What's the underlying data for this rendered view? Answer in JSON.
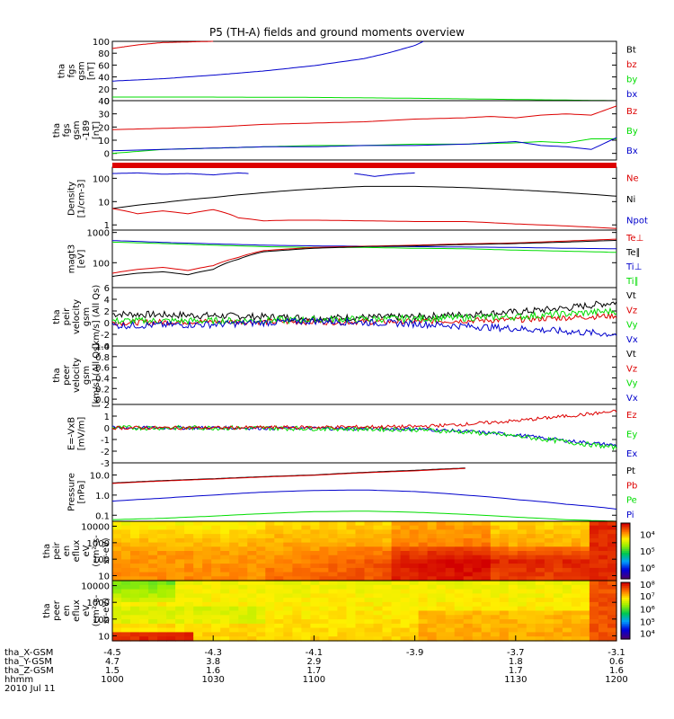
{
  "title": "P5 (TH-A) fields and ground moments overview",
  "colors": {
    "black": "#000000",
    "red": "#dd0000",
    "green": "#00dd00",
    "blue": "#0000cc"
  },
  "chart_data": [
    {
      "type": "line",
      "id": "bt",
      "ylabel": [
        "tha",
        "fgs",
        "gsm",
        "[nT]"
      ],
      "yscale": "linear",
      "ylim": [
        0,
        100
      ],
      "yticks": [
        0,
        20,
        40,
        60,
        80,
        100
      ],
      "ytick_labels": [
        "0",
        "20",
        "40",
        "60",
        "80",
        "100"
      ],
      "legend": [
        {
          "name": "Bt",
          "color": "black"
        },
        {
          "name": "bz",
          "color": "red"
        },
        {
          "name": "by",
          "color": "green"
        },
        {
          "name": "bx",
          "color": "blue"
        }
      ],
      "series": [
        {
          "name": "bz",
          "color": "red",
          "x": [
            0,
            0.05,
            0.1,
            0.2
          ],
          "y": [
            88,
            94,
            98,
            100
          ]
        },
        {
          "name": "bx",
          "color": "blue",
          "x": [
            0,
            0.1,
            0.2,
            0.3,
            0.4,
            0.5,
            0.55,
            0.6,
            0.617
          ],
          "y": [
            33,
            37,
            43,
            50,
            59,
            71,
            81,
            93,
            100
          ]
        },
        {
          "name": "by",
          "color": "green",
          "x": [
            0,
            0.2,
            0.4,
            0.6,
            0.8,
            0.9,
            1.0
          ],
          "y": [
            6,
            6,
            5.5,
            4,
            2,
            1,
            0
          ]
        }
      ]
    },
    {
      "type": "line",
      "id": "b189",
      "ylabel": [
        "tha",
        "fgs",
        "gsm",
        "-189",
        "[nT]"
      ],
      "yscale": "linear",
      "ylim": [
        -5,
        40
      ],
      "yticks": [
        0,
        10,
        20,
        30,
        40
      ],
      "ytick_labels": [
        "0",
        "10",
        "20",
        "30",
        "40"
      ],
      "legend": [
        {
          "name": "Bz",
          "color": "red"
        },
        {
          "name": "By",
          "color": "green"
        },
        {
          "name": "Bx",
          "color": "blue"
        }
      ],
      "series": [
        {
          "name": "Bz",
          "color": "red",
          "x": [
            0,
            0.1,
            0.2,
            0.3,
            0.4,
            0.5,
            0.6,
            0.7,
            0.75,
            0.8,
            0.85,
            0.9,
            0.95,
            1.0
          ],
          "y": [
            18,
            19,
            20,
            22,
            23,
            24,
            26,
            27,
            28,
            27,
            29,
            30,
            29,
            36
          ]
        },
        {
          "name": "By",
          "color": "green",
          "x": [
            0,
            0.1,
            0.2,
            0.3,
            0.4,
            0.5,
            0.6,
            0.7,
            0.8,
            0.85,
            0.9,
            0.95,
            1.0
          ],
          "y": [
            0,
            3,
            4,
            5,
            6,
            6,
            7,
            7,
            8,
            9,
            8,
            11,
            11
          ]
        },
        {
          "name": "Bx",
          "color": "blue",
          "x": [
            0,
            0.1,
            0.2,
            0.3,
            0.4,
            0.5,
            0.6,
            0.7,
            0.75,
            0.8,
            0.85,
            0.9,
            0.95,
            1.0
          ],
          "y": [
            2,
            3,
            4,
            5,
            5,
            6,
            6,
            7,
            8,
            9,
            6,
            5,
            3,
            12
          ]
        }
      ]
    },
    {
      "type": "line",
      "id": "density",
      "ylabel": [
        "Density",
        "[1/cm-3]"
      ],
      "yscale": "log",
      "ylim": [
        0.6,
        300
      ],
      "yticks": [
        1,
        10,
        100
      ],
      "ytick_labels": [
        "1",
        "10",
        "100"
      ],
      "legend": [
        {
          "name": "Ne",
          "color": "red"
        },
        {
          "name": "Ni",
          "color": "black"
        },
        {
          "name": "Npot",
          "color": "blue"
        }
      ],
      "series": [
        {
          "name": "Ni",
          "color": "black",
          "x": [
            0,
            0.1,
            0.2,
            0.3,
            0.4,
            0.5,
            0.6,
            0.7,
            0.8,
            0.9,
            1.0
          ],
          "y": [
            5,
            9,
            15,
            24,
            35,
            45,
            45,
            40,
            32,
            24,
            17
          ]
        },
        {
          "name": "Ne",
          "color": "red",
          "x": [
            0,
            0.05,
            0.1,
            0.15,
            0.2,
            0.25,
            0.3,
            0.35,
            0.4,
            0.5,
            0.6,
            0.7,
            0.8,
            0.9,
            1.0
          ],
          "y": [
            5,
            3,
            4,
            3,
            4.5,
            2,
            1.5,
            1.6,
            1.6,
            1.5,
            1.4,
            1.4,
            1.1,
            0.9,
            0.7
          ]
        },
        {
          "name": "Npot",
          "color": "blue",
          "x": [
            0,
            0.05,
            0.1,
            0.15,
            0.2,
            0.25,
            0.27
          ],
          "y": [
            160,
            170,
            150,
            160,
            140,
            170,
            160
          ]
        },
        {
          "name": "Npot",
          "color": "blue",
          "x": [
            0.48,
            0.52,
            0.56,
            0.6
          ],
          "y": [
            160,
            120,
            150,
            170
          ]
        }
      ]
    },
    {
      "type": "line",
      "id": "temp",
      "ylabel": [
        "magt3",
        "[eV]"
      ],
      "yscale": "log",
      "ylim": [
        15,
        1200
      ],
      "yticks": [
        100,
        1000
      ],
      "ytick_labels": [
        "100",
        "1000"
      ],
      "legend": [
        {
          "name": "Te⊥",
          "color": "red"
        },
        {
          "name": "Te∥",
          "color": "black"
        },
        {
          "name": "Ti⊥",
          "color": "blue"
        },
        {
          "name": "Ti∥",
          "color": "green"
        }
      ],
      "series": [
        {
          "name": "Ti∥",
          "color": "green",
          "x": [
            0,
            0.1,
            0.2,
            0.3,
            0.4,
            0.5,
            0.6,
            0.7,
            0.8,
            0.9,
            1.0
          ],
          "y": [
            480,
            430,
            380,
            340,
            320,
            320,
            300,
            290,
            260,
            240,
            220
          ]
        },
        {
          "name": "Ti⊥",
          "color": "blue",
          "x": [
            0,
            0.1,
            0.2,
            0.3,
            0.4,
            0.5,
            0.6,
            0.7,
            0.8,
            0.9,
            1.0
          ],
          "y": [
            540,
            470,
            420,
            380,
            360,
            350,
            340,
            330,
            320,
            300,
            290
          ]
        },
        {
          "name": "Te⊥",
          "color": "red",
          "x": [
            0,
            0.05,
            0.1,
            0.15,
            0.2,
            0.25,
            0.3,
            0.4,
            0.5,
            0.6,
            0.7,
            0.8,
            0.9,
            1.0
          ],
          "y": [
            45,
            60,
            70,
            55,
            80,
            150,
            250,
            320,
            350,
            380,
            420,
            450,
            520,
            600
          ]
        },
        {
          "name": "Te∥",
          "color": "black",
          "x": [
            0,
            0.05,
            0.1,
            0.15,
            0.2,
            0.25,
            0.3,
            0.4,
            0.5,
            0.6,
            0.7,
            0.8,
            0.9,
            1.0
          ],
          "y": [
            35,
            45,
            50,
            40,
            60,
            130,
            230,
            300,
            340,
            360,
            400,
            430,
            480,
            550
          ]
        }
      ]
    },
    {
      "type": "line",
      "id": "velocity_i",
      "ylabel": [
        "tha",
        "peir",
        "velocity",
        "gsm",
        "[km/s] (All Qs)"
      ],
      "yscale": "linear",
      "ylim": [
        -4,
        6
      ],
      "yticks": [
        -4,
        -2,
        0,
        2,
        4,
        6
      ],
      "ytick_labels": [
        "-4",
        "-2",
        "0",
        "2",
        "4",
        "6"
      ],
      "legend": [
        {
          "name": "Vt",
          "color": "black"
        },
        {
          "name": "Vz",
          "color": "red"
        },
        {
          "name": "Vy",
          "color": "green"
        },
        {
          "name": "Vx",
          "color": "blue"
        }
      ],
      "series": [
        {
          "name": "Vt",
          "color": "black",
          "noise": 0.6,
          "x": [
            0,
            0.2,
            0.4,
            0.6,
            0.8,
            0.9,
            1.0
          ],
          "y": [
            1.5,
            1.2,
            0.8,
            1.0,
            1.8,
            2.5,
            3.5
          ]
        },
        {
          "name": "Vz",
          "color": "red",
          "noise": 0.5,
          "x": [
            0,
            0.2,
            0.4,
            0.6,
            0.8,
            1.0
          ],
          "y": [
            0,
            0.2,
            0.1,
            0.2,
            0.5,
            1.2
          ]
        },
        {
          "name": "Vy",
          "color": "green",
          "noise": 0.6,
          "x": [
            0,
            0.2,
            0.4,
            0.6,
            0.8,
            1.0
          ],
          "y": [
            0.3,
            0.3,
            0.5,
            0.7,
            1.0,
            2.0
          ]
        },
        {
          "name": "Vx",
          "color": "blue",
          "noise": 0.6,
          "x": [
            0,
            0.2,
            0.4,
            0.6,
            0.8,
            1.0
          ],
          "y": [
            -0.5,
            -0.3,
            0.3,
            -0.2,
            -1.0,
            -2.0
          ]
        }
      ]
    },
    {
      "type": "line",
      "id": "velocity_e",
      "ylabel": [
        "tha",
        "peer",
        "velocity",
        "gsm",
        "[km/s] (All Qs)"
      ],
      "yscale": "linear",
      "ylim": [
        -0.1,
        1.0
      ],
      "yticks": [
        0.0,
        0.2,
        0.4,
        0.6,
        0.8,
        1.0
      ],
      "ytick_labels": [
        "0.0",
        "0.2",
        "0.4",
        "0.6",
        "0.8",
        "1.0"
      ],
      "legend": [
        {
          "name": "Vt",
          "color": "black"
        },
        {
          "name": "Vz",
          "color": "red"
        },
        {
          "name": "Vy",
          "color": "green"
        },
        {
          "name": "Vx",
          "color": "blue"
        }
      ],
      "series": []
    },
    {
      "type": "line",
      "id": "efield",
      "ylabel": [
        "E=-VxB",
        "[mV/m]"
      ],
      "yscale": "linear",
      "ylim": [
        -3,
        2
      ],
      "yticks": [
        -3,
        -2,
        -1,
        0,
        1,
        2
      ],
      "ytick_labels": [
        "-3",
        "-2",
        "-1",
        "0",
        "1",
        "2"
      ],
      "legend": [
        {
          "name": "Ez",
          "color": "red"
        },
        {
          "name": "Ey",
          "color": "green"
        },
        {
          "name": "Ex",
          "color": "blue"
        }
      ],
      "series": [
        {
          "name": "Ex",
          "color": "blue",
          "noise": 0.15,
          "x": [
            0,
            0.2,
            0.4,
            0.6,
            0.7,
            0.8,
            0.9,
            1.0
          ],
          "y": [
            0,
            0,
            -0.05,
            -0.1,
            -0.3,
            -0.6,
            -1.1,
            -1.5
          ]
        },
        {
          "name": "Ey",
          "color": "green",
          "noise": 0.2,
          "x": [
            0,
            0.2,
            0.4,
            0.6,
            0.7,
            0.8,
            0.9,
            1.0
          ],
          "y": [
            0,
            0,
            -0.05,
            -0.15,
            -0.35,
            -0.7,
            -1.2,
            -1.7
          ]
        },
        {
          "name": "Ez",
          "color": "red",
          "noise": 0.15,
          "x": [
            0,
            0.2,
            0.4,
            0.6,
            0.7,
            0.8,
            0.9,
            1.0
          ],
          "y": [
            0,
            0,
            0.05,
            0.1,
            0.3,
            0.6,
            1.0,
            1.4
          ]
        }
      ]
    },
    {
      "type": "line",
      "id": "pressure",
      "ylabel": [
        "Pressure",
        "[nPa]"
      ],
      "yscale": "log",
      "ylim": [
        0.05,
        40
      ],
      "yticks": [
        0.1,
        1.0,
        10.0
      ],
      "ytick_labels": [
        "0.1",
        "1.0",
        "10.0"
      ],
      "legend": [
        {
          "name": "Pt",
          "color": "black"
        },
        {
          "name": "Pb",
          "color": "red"
        },
        {
          "name": "Pe",
          "color": "green"
        },
        {
          "name": "Pi",
          "color": "blue"
        }
      ],
      "series": [
        {
          "name": "Pt",
          "color": "black",
          "x": [
            0,
            0.2,
            0.4,
            0.6,
            0.7
          ],
          "y": [
            4,
            6.5,
            10,
            17,
            22
          ]
        },
        {
          "name": "Pb",
          "color": "red",
          "x": [
            0,
            0.2,
            0.4,
            0.6,
            0.7
          ],
          "y": [
            3.8,
            6.2,
            9.6,
            16,
            21
          ]
        },
        {
          "name": "Pi",
          "color": "blue",
          "x": [
            0,
            0.1,
            0.2,
            0.3,
            0.4,
            0.5,
            0.6,
            0.7,
            0.8,
            0.9,
            1.0
          ],
          "y": [
            0.5,
            0.7,
            1.0,
            1.4,
            1.7,
            1.8,
            1.5,
            1.0,
            0.6,
            0.35,
            0.2
          ]
        },
        {
          "name": "Pe",
          "color": "green",
          "x": [
            0,
            0.1,
            0.2,
            0.3,
            0.4,
            0.5,
            0.6,
            0.7,
            0.8,
            0.9,
            1.0
          ],
          "y": [
            0.06,
            0.07,
            0.09,
            0.12,
            0.15,
            0.16,
            0.14,
            0.11,
            0.08,
            0.06,
            0.05
          ]
        }
      ]
    },
    {
      "type": "heatmap",
      "id": "peir_flux",
      "ylabel": [
        "tha",
        "peir",
        "en",
        "eflux",
        "eV",
        "(cm²-s-",
        "sr-eV)"
      ],
      "yscale": "log",
      "ylim": [
        5,
        20000
      ],
      "yticks": [
        10,
        100,
        1000,
        10000
      ],
      "ytick_labels": [
        "10",
        "100",
        "1000",
        "10000"
      ],
      "colorbar": {
        "labels": [
          "10⁴",
          "10⁵",
          "10⁶"
        ],
        "label_fractions": [
          0.2,
          0.5,
          0.8
        ]
      }
    },
    {
      "type": "heatmap",
      "id": "peer_flux",
      "ylabel": [
        "tha",
        "peer",
        "en",
        "eflux",
        "eV",
        "(cm²-s-",
        "sr-eV)"
      ],
      "yscale": "log",
      "ylim": [
        5,
        20000
      ],
      "yticks": [
        10,
        100,
        1000,
        10000
      ],
      "ytick_labels": [
        "10",
        "100",
        "1000",
        "10000"
      ],
      "colorbar": {
        "labels": [
          "10⁸",
          "10⁷",
          "10⁶",
          "10⁵",
          "10⁴"
        ],
        "label_fractions": [
          0.03,
          0.24,
          0.47,
          0.69,
          0.9
        ]
      }
    }
  ],
  "x_axis": {
    "tick_fractions": [
      0,
      0.2,
      0.4,
      0.6,
      0.8,
      1.0
    ],
    "rows": [
      {
        "label": "tha_X-GSM",
        "values": [
          "-4.5",
          "-4.3",
          "-4.1",
          "-3.9",
          "-3.7",
          "-3.1"
        ]
      },
      {
        "label": "tha_Y-GSM",
        "values": [
          "4.7",
          "3.8",
          "2.9",
          "",
          "1.8",
          "0.6"
        ]
      },
      {
        "label": "tha_Z-GSM",
        "values": [
          "1.5",
          "1.6",
          "1.7",
          "",
          "1.7",
          "1.6"
        ]
      },
      {
        "label": "hhmm",
        "values": [
          "1000",
          "1030",
          "1100",
          "",
          "1130",
          "1200"
        ]
      }
    ],
    "date": "2010 Jul 11"
  }
}
